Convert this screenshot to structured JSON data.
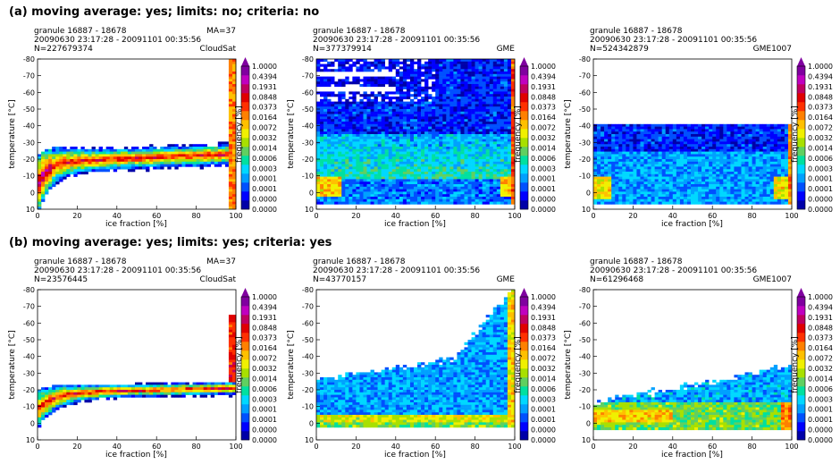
{
  "rows": [
    {
      "title": "(a) moving average: yes; limits: no; criteria: no"
    },
    {
      "title": "(b) moving average: yes; limits: yes; criteria: yes"
    }
  ],
  "colorbar": {
    "label": "frequency [%]",
    "ticks": [
      "1.0000",
      "0.4394",
      "0.1931",
      "0.0848",
      "0.0373",
      "0.0164",
      "0.0072",
      "0.0032",
      "0.0014",
      "0.0006",
      "0.0003",
      "0.0001",
      "0.0001",
      "0.0000",
      "0.0000"
    ],
    "colors": [
      "#ffffff",
      "#0000a8",
      "#0000ff",
      "#0050ff",
      "#00a0ff",
      "#00d8ff",
      "#00e0a0",
      "#60d060",
      "#a8e000",
      "#f0f000",
      "#ffc000",
      "#ff8000",
      "#ff3000",
      "#e00000",
      "#c00060",
      "#c000c0",
      "#8000a0"
    ]
  },
  "chart_data": [
    {
      "type": "heatmap",
      "row": 0,
      "granule": "granule 16887 - 18678",
      "timerange": "20090630 23:17:28 - 20091101 00:35:56",
      "n": "N=227679374",
      "model": "CloudSat",
      "extra": "MA=37",
      "xlabel": "ice fraction [%]",
      "ylabel": "temperature [$^\\circ$C]",
      "xlim": [
        0,
        100
      ],
      "ylim": [
        10,
        -80
      ],
      "xticks": [
        "0",
        "20",
        "40",
        "60",
        "80",
        "100"
      ],
      "yticks": [
        "-80",
        "-70",
        "-60",
        "-50",
        "-40",
        "-30",
        "-20",
        "-10",
        "0",
        "10"
      ],
      "pattern": "cloudsat_a"
    },
    {
      "type": "heatmap",
      "row": 0,
      "granule": "granule 16887 - 18678",
      "timerange": "20090630 23:17:28 - 20091101 00:35:56",
      "n": "N=377379914",
      "model": "GME",
      "extra": "",
      "xlabel": "ice fraction [%]",
      "ylabel": "temperature [$^\\circ$C]",
      "xlim": [
        0,
        100
      ],
      "ylim": [
        10,
        -80
      ],
      "xticks": [
        "0",
        "20",
        "40",
        "60",
        "80",
        "100"
      ],
      "yticks": [
        "-80",
        "-70",
        "-60",
        "-50",
        "-40",
        "-30",
        "-20",
        "-10",
        "0",
        "10"
      ],
      "pattern": "gme_a"
    },
    {
      "type": "heatmap",
      "row": 0,
      "granule": "granule 16887 - 18678",
      "timerange": "20090630 23:17:28 - 20091101 00:35:56",
      "n": "N=524342879",
      "model": "GME1007",
      "extra": "",
      "xlabel": "ice fraction [%]",
      "ylabel": "temperature [$^\\circ$C]",
      "xlim": [
        0,
        100
      ],
      "ylim": [
        10,
        -80
      ],
      "xticks": [
        "0",
        "20",
        "40",
        "60",
        "80",
        "100"
      ],
      "yticks": [
        "-80",
        "-70",
        "-60",
        "-50",
        "-40",
        "-30",
        "-20",
        "-10",
        "0",
        "10"
      ],
      "pattern": "gme1007_a"
    },
    {
      "type": "heatmap",
      "row": 1,
      "granule": "granule 16887 - 18678",
      "timerange": "20090630 23:17:28 - 20091101 00:35:56",
      "n": "N=23576445",
      "model": "CloudSat",
      "extra": "MA=37",
      "xlabel": "ice fraction [%]",
      "ylabel": "temperature [$^\\circ$C]",
      "xlim": [
        0,
        100
      ],
      "ylim": [
        10,
        -80
      ],
      "xticks": [
        "0",
        "20",
        "40",
        "60",
        "80",
        "100"
      ],
      "yticks": [
        "-80",
        "-70",
        "-60",
        "-50",
        "-40",
        "-30",
        "-20",
        "-10",
        "0",
        "10"
      ],
      "pattern": "cloudsat_b"
    },
    {
      "type": "heatmap",
      "row": 1,
      "granule": "granule 16887 - 18678",
      "timerange": "20090630 23:17:28 - 20091101 00:35:56",
      "n": "N=43770157",
      "model": "GME",
      "extra": "",
      "xlabel": "ice fraction [%]",
      "ylabel": "temperature [$^\\circ$C]",
      "xlim": [
        0,
        100
      ],
      "ylim": [
        10,
        -80
      ],
      "xticks": [
        "0",
        "20",
        "40",
        "60",
        "80",
        "100"
      ],
      "yticks": [
        "-80",
        "-70",
        "-60",
        "-50",
        "-40",
        "-30",
        "-20",
        "-10",
        "0",
        "10"
      ],
      "pattern": "gme_b"
    },
    {
      "type": "heatmap",
      "row": 1,
      "granule": "granule 16887 - 18678",
      "timerange": "20090630 23:17:28 - 20091101 00:35:56",
      "n": "N=61296468",
      "model": "GME1007",
      "extra": "",
      "xlabel": "ice fraction [%]",
      "ylabel": "temperature [$^\\circ$C]",
      "xlim": [
        0,
        100
      ],
      "ylim": [
        10,
        -80
      ],
      "xticks": [
        "0",
        "20",
        "40",
        "60",
        "80",
        "100"
      ],
      "yticks": [
        "-80",
        "-70",
        "-60",
        "-50",
        "-40",
        "-30",
        "-20",
        "-10",
        "0",
        "10"
      ],
      "pattern": "gme1007_b"
    }
  ]
}
